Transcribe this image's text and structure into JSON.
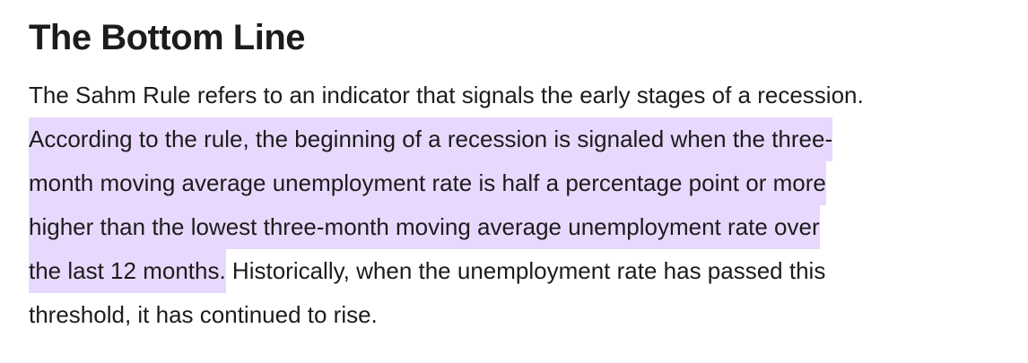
{
  "heading": "The Bottom Line",
  "paragraph": {
    "lines": [
      [
        {
          "text": "The Sahm Rule refers to an indicator that signals the early stages of a recession.",
          "highlight": false
        }
      ],
      [
        {
          "text": "According to the rule, the beginning of a recession is signaled when the three-",
          "highlight": true
        }
      ],
      [
        {
          "text": "month moving average unemployment rate is half a percentage point or more",
          "highlight": true
        }
      ],
      [
        {
          "text": "higher than the lowest three-month moving average unemployment rate over",
          "highlight": true
        }
      ],
      [
        {
          "text": "the last 12 months.",
          "highlight": true
        },
        {
          "text": "Historically, when the unemployment rate has passed this",
          "highlight": false
        }
      ],
      [
        {
          "text": "threshold, it has continued to rise.",
          "highlight": false
        }
      ]
    ]
  }
}
